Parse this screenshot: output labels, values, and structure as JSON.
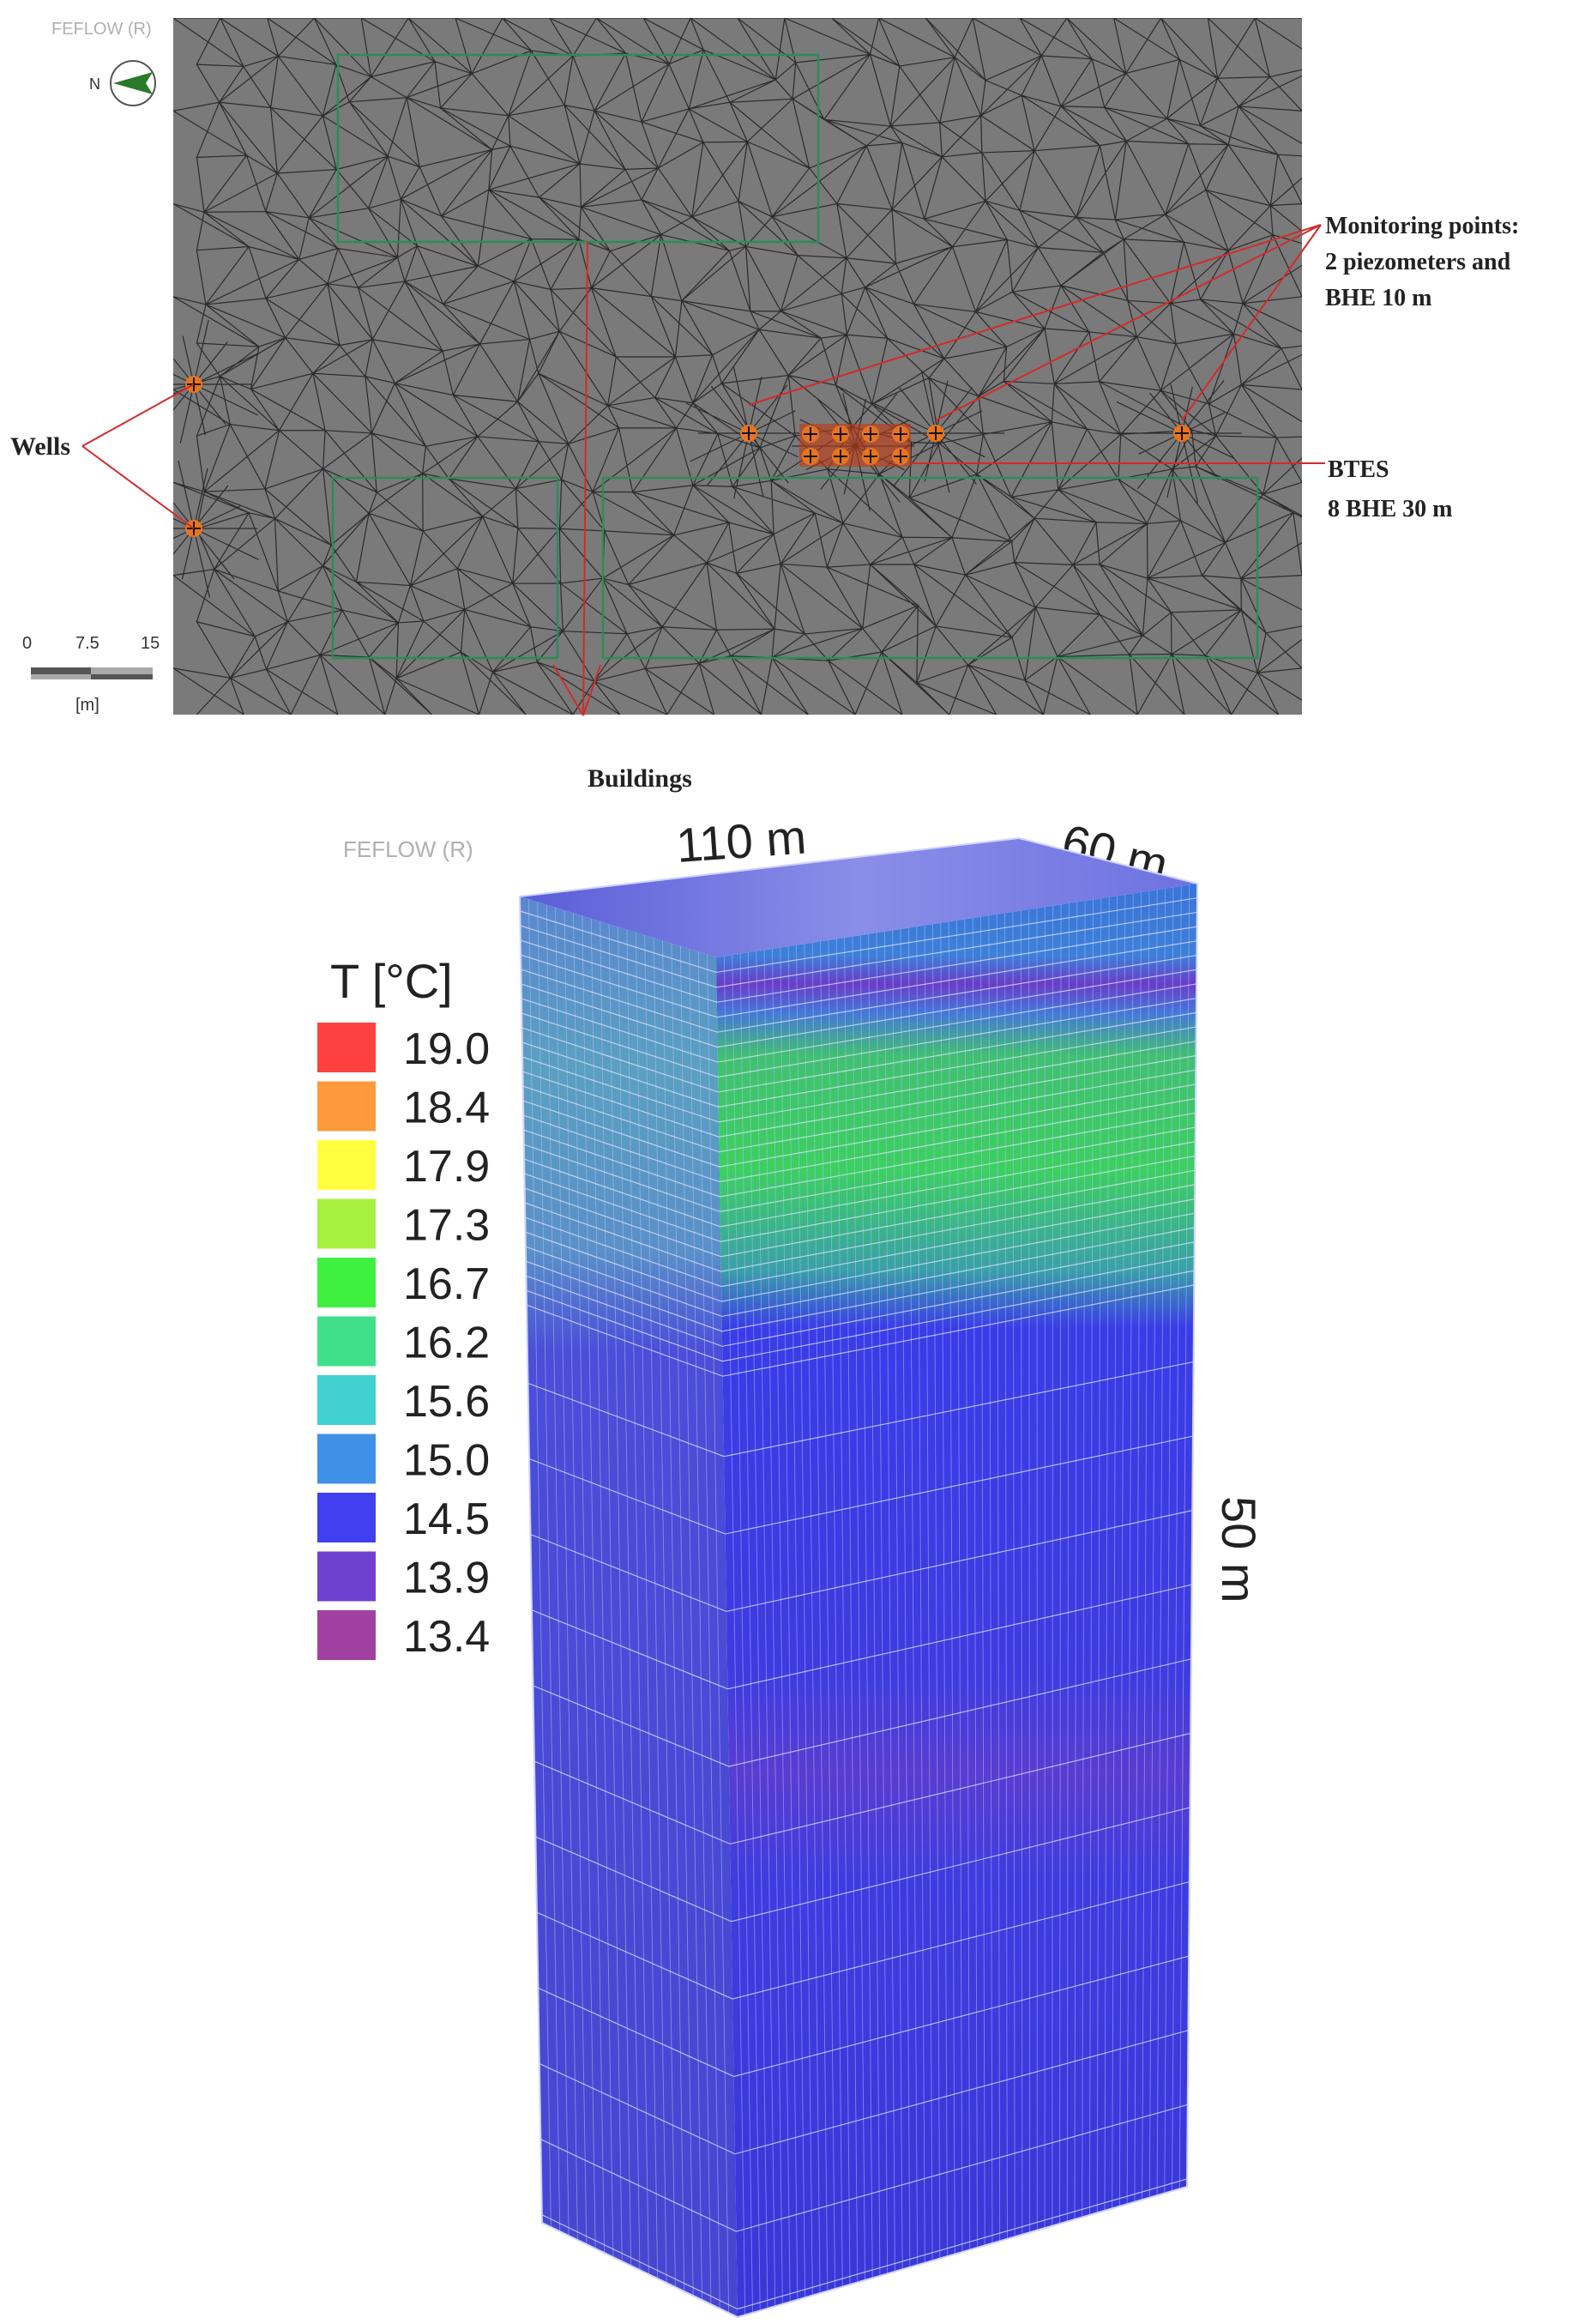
{
  "plan_view": {
    "watermark": "FEFLOW (R)",
    "north_label": "N",
    "scale_bar": {
      "ticks": [
        "0",
        "7.5",
        "15"
      ],
      "unit": "[m]"
    },
    "labels": {
      "wells": "Wells",
      "monitoring_line1": "Monitoring points:",
      "monitoring_line2": "2 piezometers and",
      "monitoring_line3": "BHE 10 m",
      "btes_line1": "BTES",
      "btes_line2": "8 BHE 30 m",
      "buildings": "Buildings"
    },
    "colors": {
      "mesh_bg": "#7a7a7a",
      "mesh_line": "#2b2b2b",
      "building_outline": "#2e8b57",
      "annotation": "#d42a2a",
      "marker": "#e8741e"
    }
  },
  "block_view": {
    "watermark": "FEFLOW (R)",
    "dimensions": {
      "length": "110 m",
      "width": "60 m",
      "depth": "50 m"
    },
    "legend": {
      "title": "T  [°C]",
      "entries": [
        {
          "value": "19.0",
          "color": "#ff4040"
        },
        {
          "value": "18.4",
          "color": "#ff9a3c"
        },
        {
          "value": "17.9",
          "color": "#ffff40"
        },
        {
          "value": "17.3",
          "color": "#a6f040"
        },
        {
          "value": "16.7",
          "color": "#40f040"
        },
        {
          "value": "16.2",
          "color": "#40e08a"
        },
        {
          "value": "15.6",
          "color": "#40d0d0"
        },
        {
          "value": "15.0",
          "color": "#4090e8"
        },
        {
          "value": "14.5",
          "color": "#4040f0"
        },
        {
          "value": "13.9",
          "color": "#7040d0"
        },
        {
          "value": "13.4",
          "color": "#a040a0"
        }
      ]
    }
  }
}
